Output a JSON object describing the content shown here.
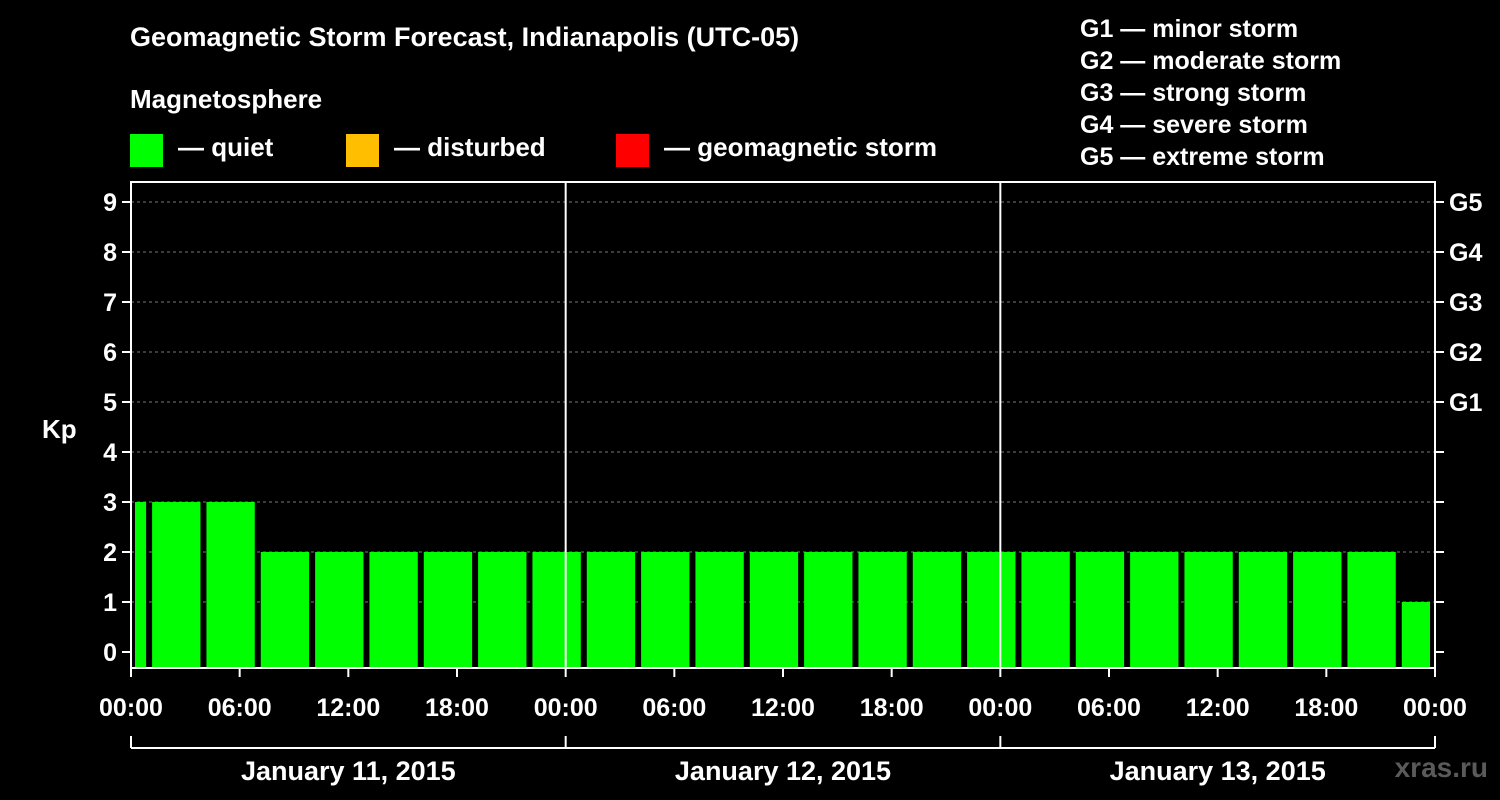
{
  "title": "Geomagnetic Storm Forecast, Indianapolis (UTC-05)",
  "magnetosphere_label": "Magnetosphere",
  "legend": [
    {
      "label": "— quiet",
      "color": "#00ff00"
    },
    {
      "label": "— disturbed",
      "color": "#ffbf00"
    },
    {
      "label": "— geomagnetic storm",
      "color": "#ff0000"
    }
  ],
  "storm_scale": [
    "G1 — minor storm",
    "G2 — moderate storm",
    "G3 — strong storm",
    "G4 — severe storm",
    "G5 — extreme storm"
  ],
  "watermark": "xras.ru",
  "chart_data": {
    "type": "bar",
    "title": "Geomagnetic Storm Forecast, Indianapolis (UTC-05)",
    "ylabel": "Kp",
    "ylim": [
      0,
      9
    ],
    "y_ticks": [
      "0",
      "1",
      "2",
      "3",
      "4",
      "5",
      "6",
      "7",
      "8",
      "9"
    ],
    "right_axis_ticks": [
      {
        "kp": 5,
        "label": "G1"
      },
      {
        "kp": 6,
        "label": "G2"
      },
      {
        "kp": 7,
        "label": "G3"
      },
      {
        "kp": 8,
        "label": "G4"
      },
      {
        "kp": 9,
        "label": "G5"
      }
    ],
    "x_tick_labels": [
      "00:00",
      "06:00",
      "12:00",
      "18:00",
      "00:00",
      "06:00",
      "12:00",
      "18:00",
      "00:00",
      "06:00",
      "12:00",
      "18:00",
      "00:00"
    ],
    "day_labels": [
      "January 11, 2015",
      "January 12, 2015",
      "January 13, 2015"
    ],
    "interval_hours": 3,
    "first_interval_start_hour": -2,
    "grid": true,
    "colors": {
      "quiet": "#00ff00",
      "disturbed": "#ffbf00",
      "storm": "#ff0000"
    },
    "values": [
      3,
      3,
      3,
      2,
      2,
      2,
      2,
      2,
      2,
      2,
      2,
      2,
      2,
      2,
      2,
      2,
      2,
      2,
      2,
      2,
      2,
      2,
      2,
      2,
      1
    ]
  }
}
